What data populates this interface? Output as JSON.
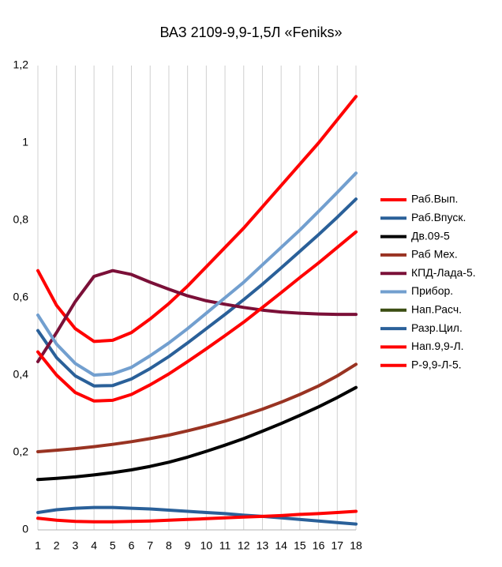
{
  "chart_data": {
    "type": "line",
    "title": "ВАЗ 2109-9,9-1,5Л «Feniks»",
    "x": [
      1,
      2,
      3,
      4,
      5,
      6,
      7,
      8,
      9,
      10,
      11,
      12,
      13,
      14,
      15,
      16,
      17,
      18
    ],
    "xlim": [
      1,
      18
    ],
    "xticks": [
      1,
      2,
      3,
      4,
      5,
      6,
      7,
      8,
      9,
      10,
      11,
      12,
      13,
      14,
      15,
      16,
      17,
      18
    ],
    "ylim": [
      0,
      1.2
    ],
    "yticks": [
      0,
      {
        "value": 0.2,
        "label": "0,2"
      },
      {
        "value": 0.4,
        "label": "0,4"
      },
      {
        "value": 0.6,
        "label": "0,6"
      },
      {
        "value": 0.8,
        "label": "0,8"
      },
      1,
      {
        "value": 1.2,
        "label": "1,2"
      }
    ],
    "xgrid": true,
    "ygrid": false,
    "legend": "right",
    "series": [
      {
        "name": "Раб.Вып.",
        "color": "#ff0000",
        "values": [
          0.67,
          0.58,
          0.52,
          0.487,
          0.49,
          0.51,
          0.545,
          0.585,
          0.63,
          0.68,
          0.73,
          0.78,
          0.835,
          0.89,
          0.945,
          1.0,
          1.06,
          1.12
        ]
      },
      {
        "name": "Раб.Впуск.",
        "color": "#2a6099",
        "values": [
          0.515,
          0.445,
          0.398,
          0.372,
          0.373,
          0.39,
          0.417,
          0.448,
          0.483,
          0.52,
          0.557,
          0.595,
          0.635,
          0.677,
          0.72,
          0.763,
          0.808,
          0.855
        ]
      },
      {
        "name": "Дв.09-5",
        "color": "#000000",
        "values": [
          0.13,
          0.133,
          0.137,
          0.142,
          0.148,
          0.155,
          0.164,
          0.175,
          0.188,
          0.203,
          0.219,
          0.236,
          0.255,
          0.275,
          0.296,
          0.318,
          0.342,
          0.368
        ]
      },
      {
        "name": "Раб Мех.",
        "color": "#993322",
        "values": [
          0.202,
          0.206,
          0.21,
          0.215,
          0.221,
          0.228,
          0.236,
          0.245,
          0.256,
          0.268,
          0.281,
          0.296,
          0.312,
          0.33,
          0.35,
          0.372,
          0.398,
          0.428
        ]
      },
      {
        "name": "КПД-Лада-5.",
        "color": "#7b1038",
        "values": [
          0.435,
          0.51,
          0.59,
          0.655,
          0.67,
          0.66,
          0.64,
          0.622,
          0.605,
          0.592,
          0.583,
          0.575,
          0.568,
          0.563,
          0.56,
          0.558,
          0.557,
          0.557
        ]
      },
      {
        "name": "Прибор.",
        "color": "#729fcf",
        "values": [
          0.555,
          0.48,
          0.43,
          0.4,
          0.403,
          0.42,
          0.45,
          0.483,
          0.52,
          0.56,
          0.6,
          0.64,
          0.685,
          0.73,
          0.775,
          0.823,
          0.872,
          0.922
        ]
      },
      {
        "name": "Нап.Расч.",
        "color": "#3b4d12",
        "values": [
          null,
          null,
          null,
          null,
          null,
          null,
          null,
          null,
          null,
          null,
          null,
          null,
          null,
          null,
          null,
          null,
          null,
          null
        ]
      },
      {
        "name": "Разр.Цил.",
        "color": "#2a6099",
        "values": [
          0.045,
          0.052,
          0.056,
          0.058,
          0.058,
          0.056,
          0.054,
          0.051,
          0.048,
          0.045,
          0.042,
          0.038,
          0.035,
          0.031,
          0.027,
          0.023,
          0.019,
          0.015
        ]
      },
      {
        "name": "Нап.9,9-Л.",
        "color": "#ff0000",
        "values": [
          0.03,
          0.025,
          0.022,
          0.021,
          0.021,
          0.022,
          0.023,
          0.025,
          0.027,
          0.029,
          0.031,
          0.033,
          0.035,
          0.037,
          0.04,
          0.042,
          0.045,
          0.048
        ]
      },
      {
        "name": "Р-9,9-Л-5.",
        "color": "#ff0000",
        "values": [
          0.46,
          0.4,
          0.355,
          0.333,
          0.335,
          0.35,
          0.375,
          0.403,
          0.435,
          0.468,
          0.502,
          0.537,
          0.575,
          0.613,
          0.652,
          0.69,
          0.73,
          0.77
        ]
      }
    ]
  }
}
